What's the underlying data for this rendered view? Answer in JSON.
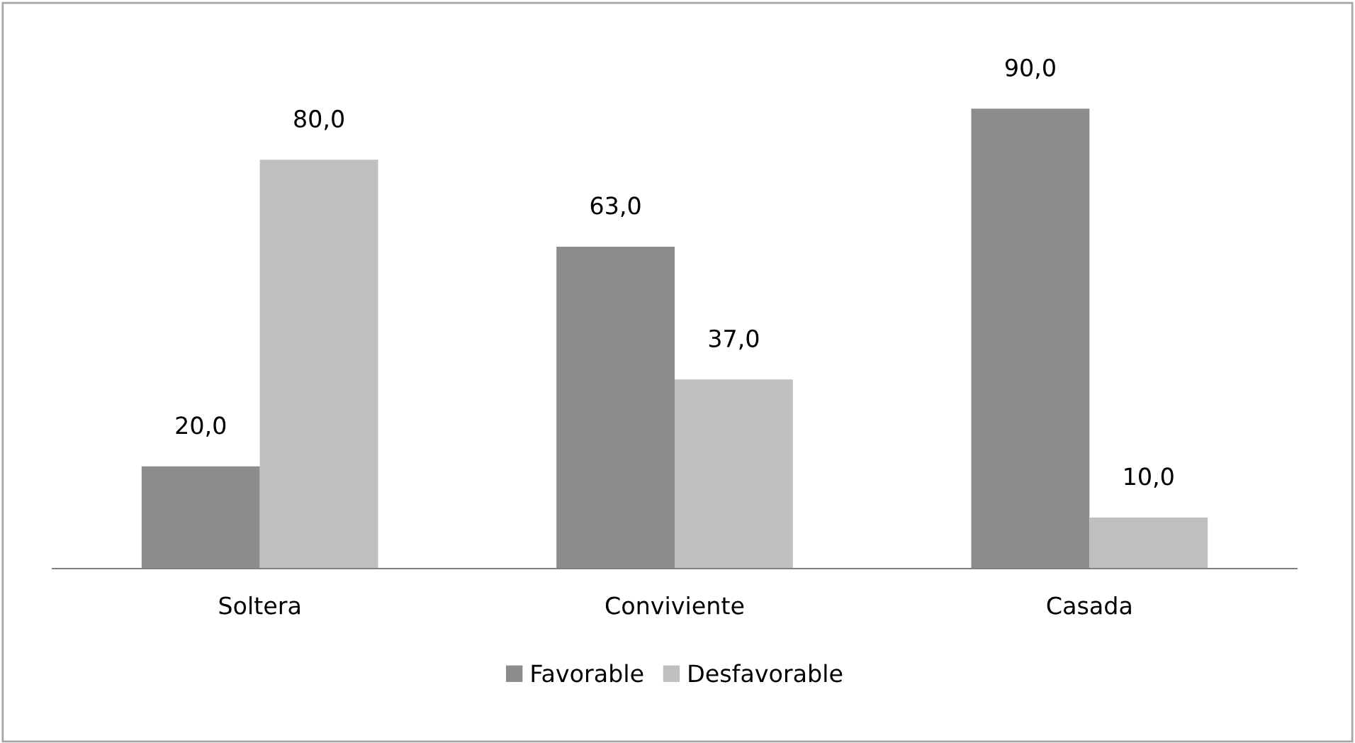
{
  "chart_data": {
    "type": "bar",
    "categories": [
      "Soltera",
      "Conviviente",
      "Casada"
    ],
    "series": [
      {
        "name": "Favorable",
        "color": "#8c8c8c",
        "values": [
          20.0,
          63.0,
          90.0
        ],
        "value_labels": [
          "20,0",
          "63,0",
          "90,0"
        ]
      },
      {
        "name": "Desfavorable",
        "color": "#bfbfbf",
        "values": [
          80.0,
          37.0,
          10.0
        ],
        "value_labels": [
          "80,0",
          "37,0",
          "10,0"
        ]
      }
    ],
    "legend": "bottom",
    "grid": false
  }
}
